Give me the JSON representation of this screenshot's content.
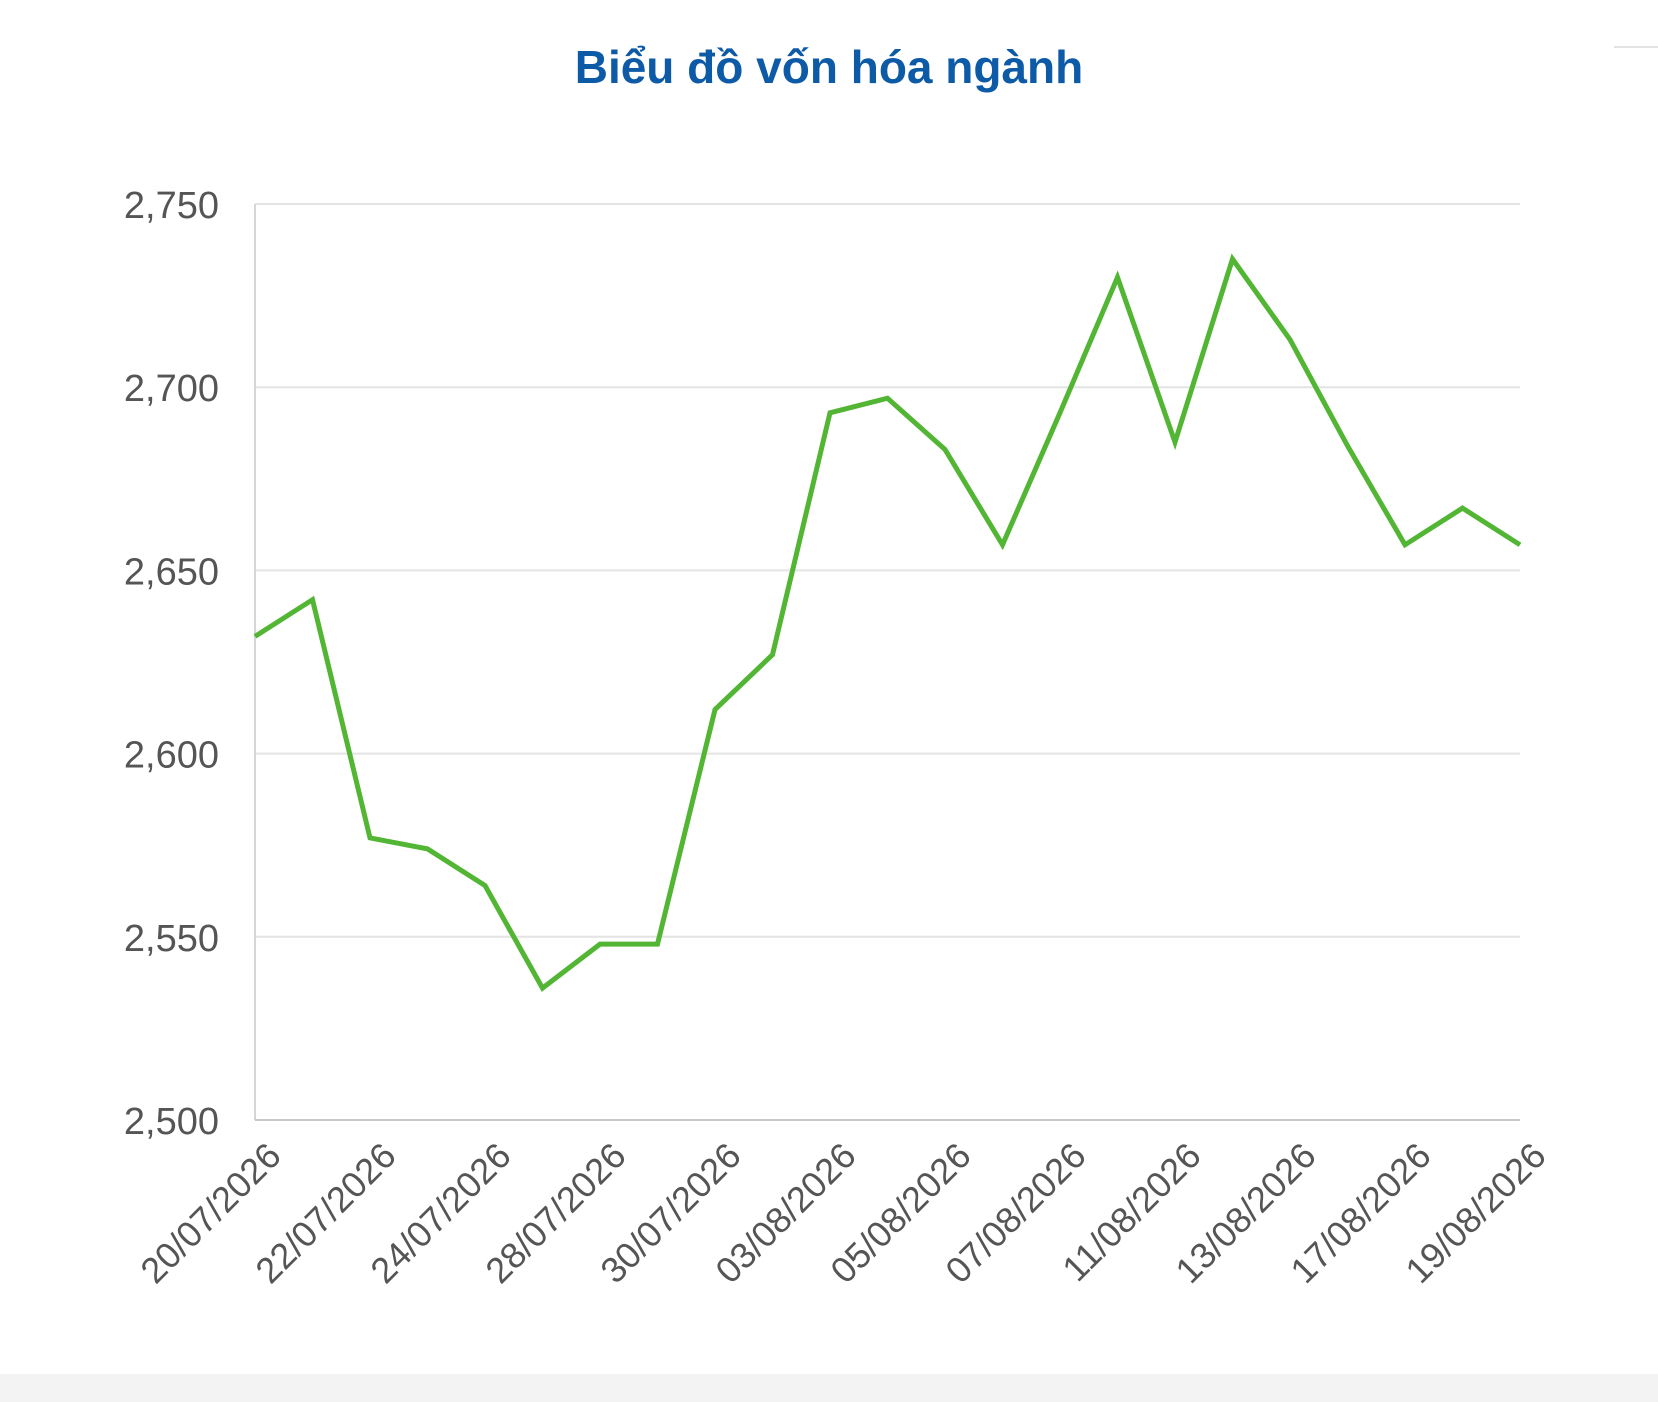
{
  "chart_data": {
    "type": "line",
    "title": "Biểu đồ vốn hóa ngành",
    "xlabel": "",
    "ylabel": "",
    "ylim": [
      2500,
      2750
    ],
    "y_ticks": [
      "2,500",
      "2,550",
      "2,600",
      "2,650",
      "2,700",
      "2,750"
    ],
    "y_tick_values": [
      2500,
      2550,
      2600,
      2650,
      2700,
      2750
    ],
    "x_tick_labels": [
      "20/07/2026",
      "22/07/2026",
      "24/07/2026",
      "28/07/2026",
      "30/07/2026",
      "03/08/2026",
      "05/08/2026",
      "07/08/2026",
      "11/08/2026",
      "13/08/2026",
      "17/08/2026",
      "19/08/2026"
    ],
    "grid": true,
    "line_color": "#52b634",
    "grid_color": "#e4e4e4",
    "title_color": "#0d5aa7",
    "series": [
      {
        "values": [
          2632,
          2642,
          2577,
          2574,
          2564,
          2536,
          2548,
          2548,
          2612,
          2627,
          2693,
          2697,
          2683,
          2657,
          2693,
          2730,
          2685,
          2735,
          2713,
          2684,
          2657,
          2667,
          2657
        ]
      }
    ]
  }
}
